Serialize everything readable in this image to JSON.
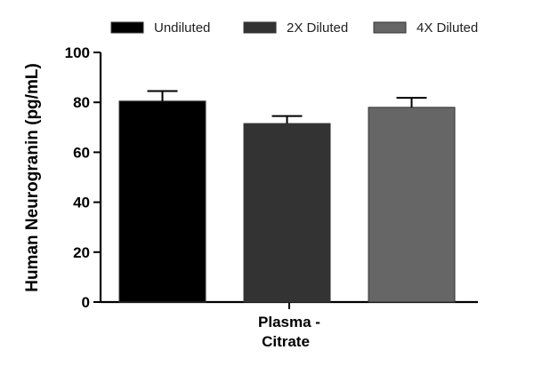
{
  "chart_data": {
    "type": "bar",
    "title": "",
    "xlabel": "",
    "ylabel": "Human Neurogranin (pg/mL)",
    "ylim": [
      0,
      100
    ],
    "yticks": [
      0,
      20,
      40,
      60,
      80,
      100
    ],
    "category_label_lines": [
      "Plasma -",
      "Citrate"
    ],
    "categories": [
      "Plasma - Citrate"
    ],
    "legend_position": "top",
    "series": [
      {
        "name": "Undiluted",
        "values": [
          80.5
        ],
        "error": [
          4.0
        ],
        "color": "#000000"
      },
      {
        "name": "2X Diluted",
        "values": [
          71.5
        ],
        "error": [
          3.0
        ],
        "color": "#333333"
      },
      {
        "name": "4X Diluted",
        "values": [
          78.0
        ],
        "error": [
          3.8
        ],
        "color": "#666666"
      }
    ]
  }
}
